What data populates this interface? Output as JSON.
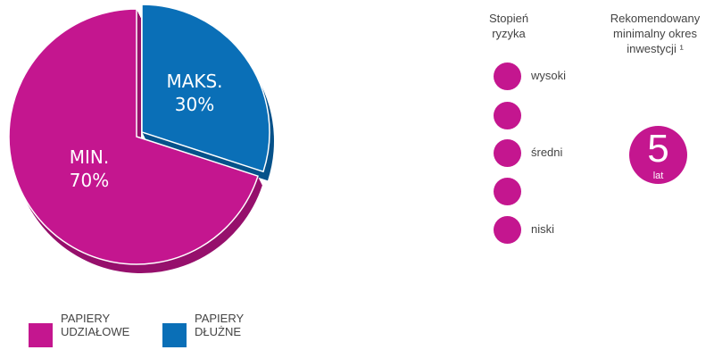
{
  "chart_data": {
    "type": "pie",
    "title": "",
    "slices": [
      {
        "name": "PAPIERY UDZIAŁOWE",
        "value": 70,
        "label_line1": "MIN.",
        "label_line2": "70%",
        "color": "#c4168f",
        "shadow": "#96106c"
      },
      {
        "name": "PAPIERY DŁUŻNE",
        "value": 30,
        "label_line1": "MAKS.",
        "label_line2": "30%",
        "color": "#0a6fb7",
        "shadow": "#07528a"
      }
    ],
    "legend": {
      "placement": "bottom-left",
      "entries": [
        {
          "label": "PAPIERY\nUDZIAŁOWE",
          "color": "#c4168f"
        },
        {
          "label": "PAPIERY\nDŁUŻNE",
          "color": "#0a6fb7"
        }
      ]
    }
  },
  "risk": {
    "header": "Stopień\nryzyka",
    "color": "#c4168f",
    "levels": [
      {
        "label": "wysoki"
      },
      {
        "label": ""
      },
      {
        "label": "średni"
      },
      {
        "label": ""
      },
      {
        "label": "niski"
      }
    ]
  },
  "horizon": {
    "header": "Rekomendowany\nminimalny okres\ninwestycji ¹",
    "value": "5",
    "unit": "lat",
    "color": "#c4168f"
  }
}
